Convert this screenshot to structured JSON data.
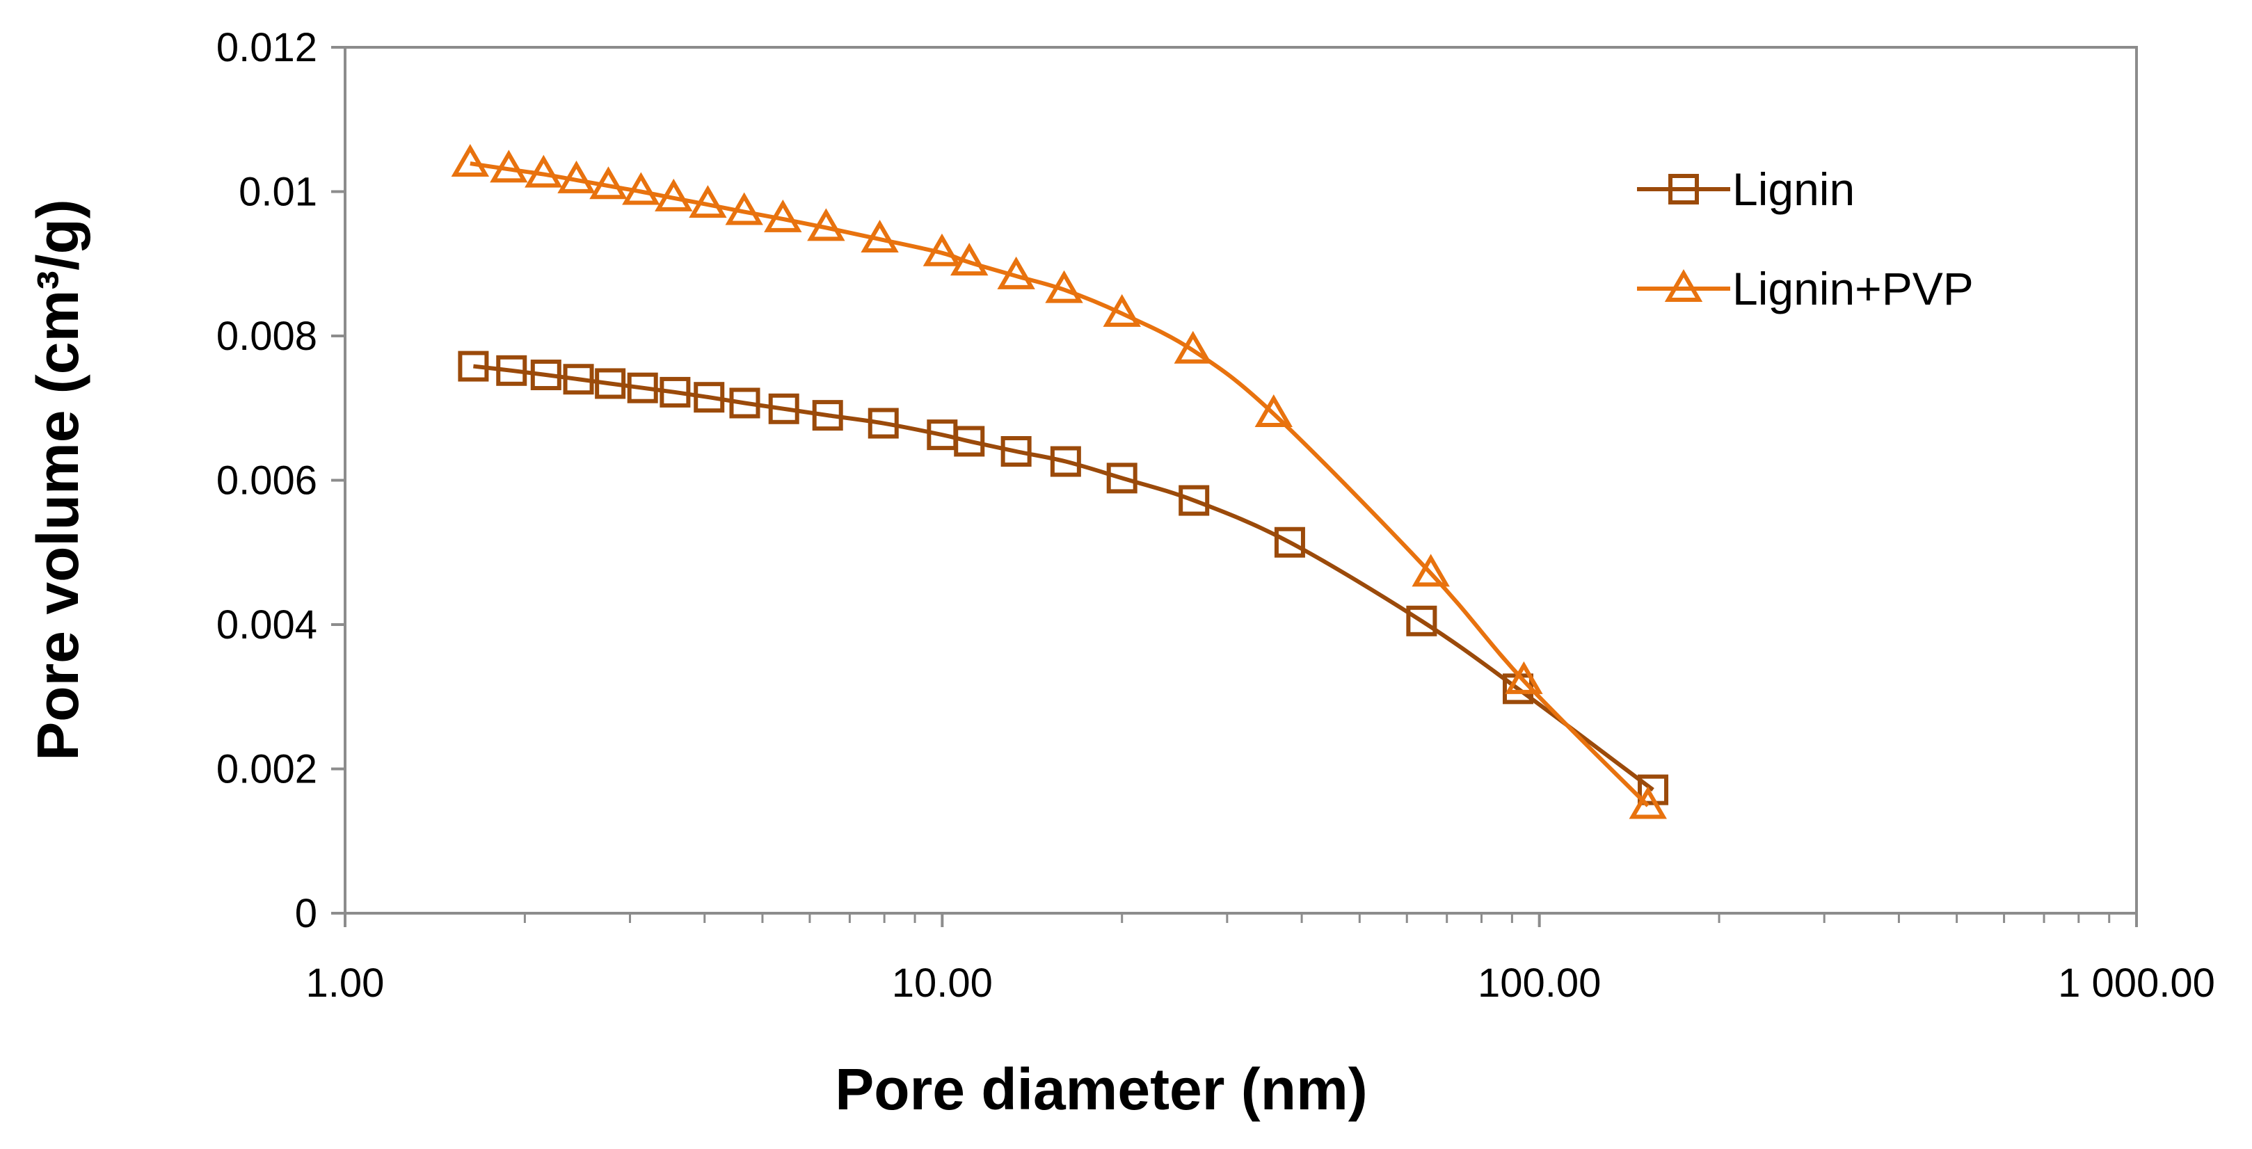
{
  "chart_data": {
    "type": "line",
    "title": "",
    "xlabel": "Pore diameter (nm)",
    "ylabel": "Pore volume (cm³/g)",
    "x_scale": "log",
    "xlim": [
      1,
      1000
    ],
    "ylim": [
      0,
      0.012
    ],
    "x_ticks": [
      1,
      10,
      100,
      1000
    ],
    "x_tick_labels": [
      "1.00",
      "10.00",
      "100.00",
      "1 000.00"
    ],
    "y_ticks": [
      0,
      0.002,
      0.004,
      0.006,
      0.008,
      0.01,
      0.012
    ],
    "y_tick_labels": [
      "0",
      "0.002",
      "0.004",
      "0.006",
      "0.008",
      "0.01",
      "0.012"
    ],
    "grid": false,
    "legend_position": "top-right",
    "series": [
      {
        "name": "Lignin",
        "color": "#9b4a0a",
        "marker": "square",
        "x": [
          1.64,
          1.9,
          2.17,
          2.46,
          2.78,
          3.15,
          3.57,
          4.07,
          4.67,
          5.43,
          6.43,
          7.97,
          10.0,
          11.1,
          13.3,
          16.1,
          20.0,
          26.4,
          38.2,
          63.5,
          92.1,
          155.0
        ],
        "y": [
          0.00758,
          0.00752,
          0.00746,
          0.0074,
          0.00734,
          0.00728,
          0.00722,
          0.00715,
          0.00707,
          0.00699,
          0.0069,
          0.00679,
          0.00663,
          0.00654,
          0.0064,
          0.00626,
          0.00603,
          0.00572,
          0.00514,
          0.00405,
          0.00311,
          0.00171
        ]
      },
      {
        "name": "Lignin+PVP",
        "color": "#e8720e",
        "marker": "triangle",
        "x": [
          1.62,
          1.88,
          2.15,
          2.44,
          2.76,
          3.13,
          3.55,
          4.05,
          4.66,
          5.41,
          6.39,
          7.86,
          9.99,
          11.1,
          13.3,
          16.0,
          20.0,
          26.3,
          35.9,
          65.8,
          94.2,
          152.0
        ],
        "y": [
          0.01039,
          0.01031,
          0.01024,
          0.01016,
          0.01008,
          0.01,
          0.00991,
          0.00982,
          0.00972,
          0.00962,
          0.0095,
          0.00934,
          0.00915,
          0.00902,
          0.00883,
          0.00864,
          0.00831,
          0.0078,
          0.00692,
          0.00471,
          0.00322,
          0.00149
        ]
      }
    ]
  }
}
